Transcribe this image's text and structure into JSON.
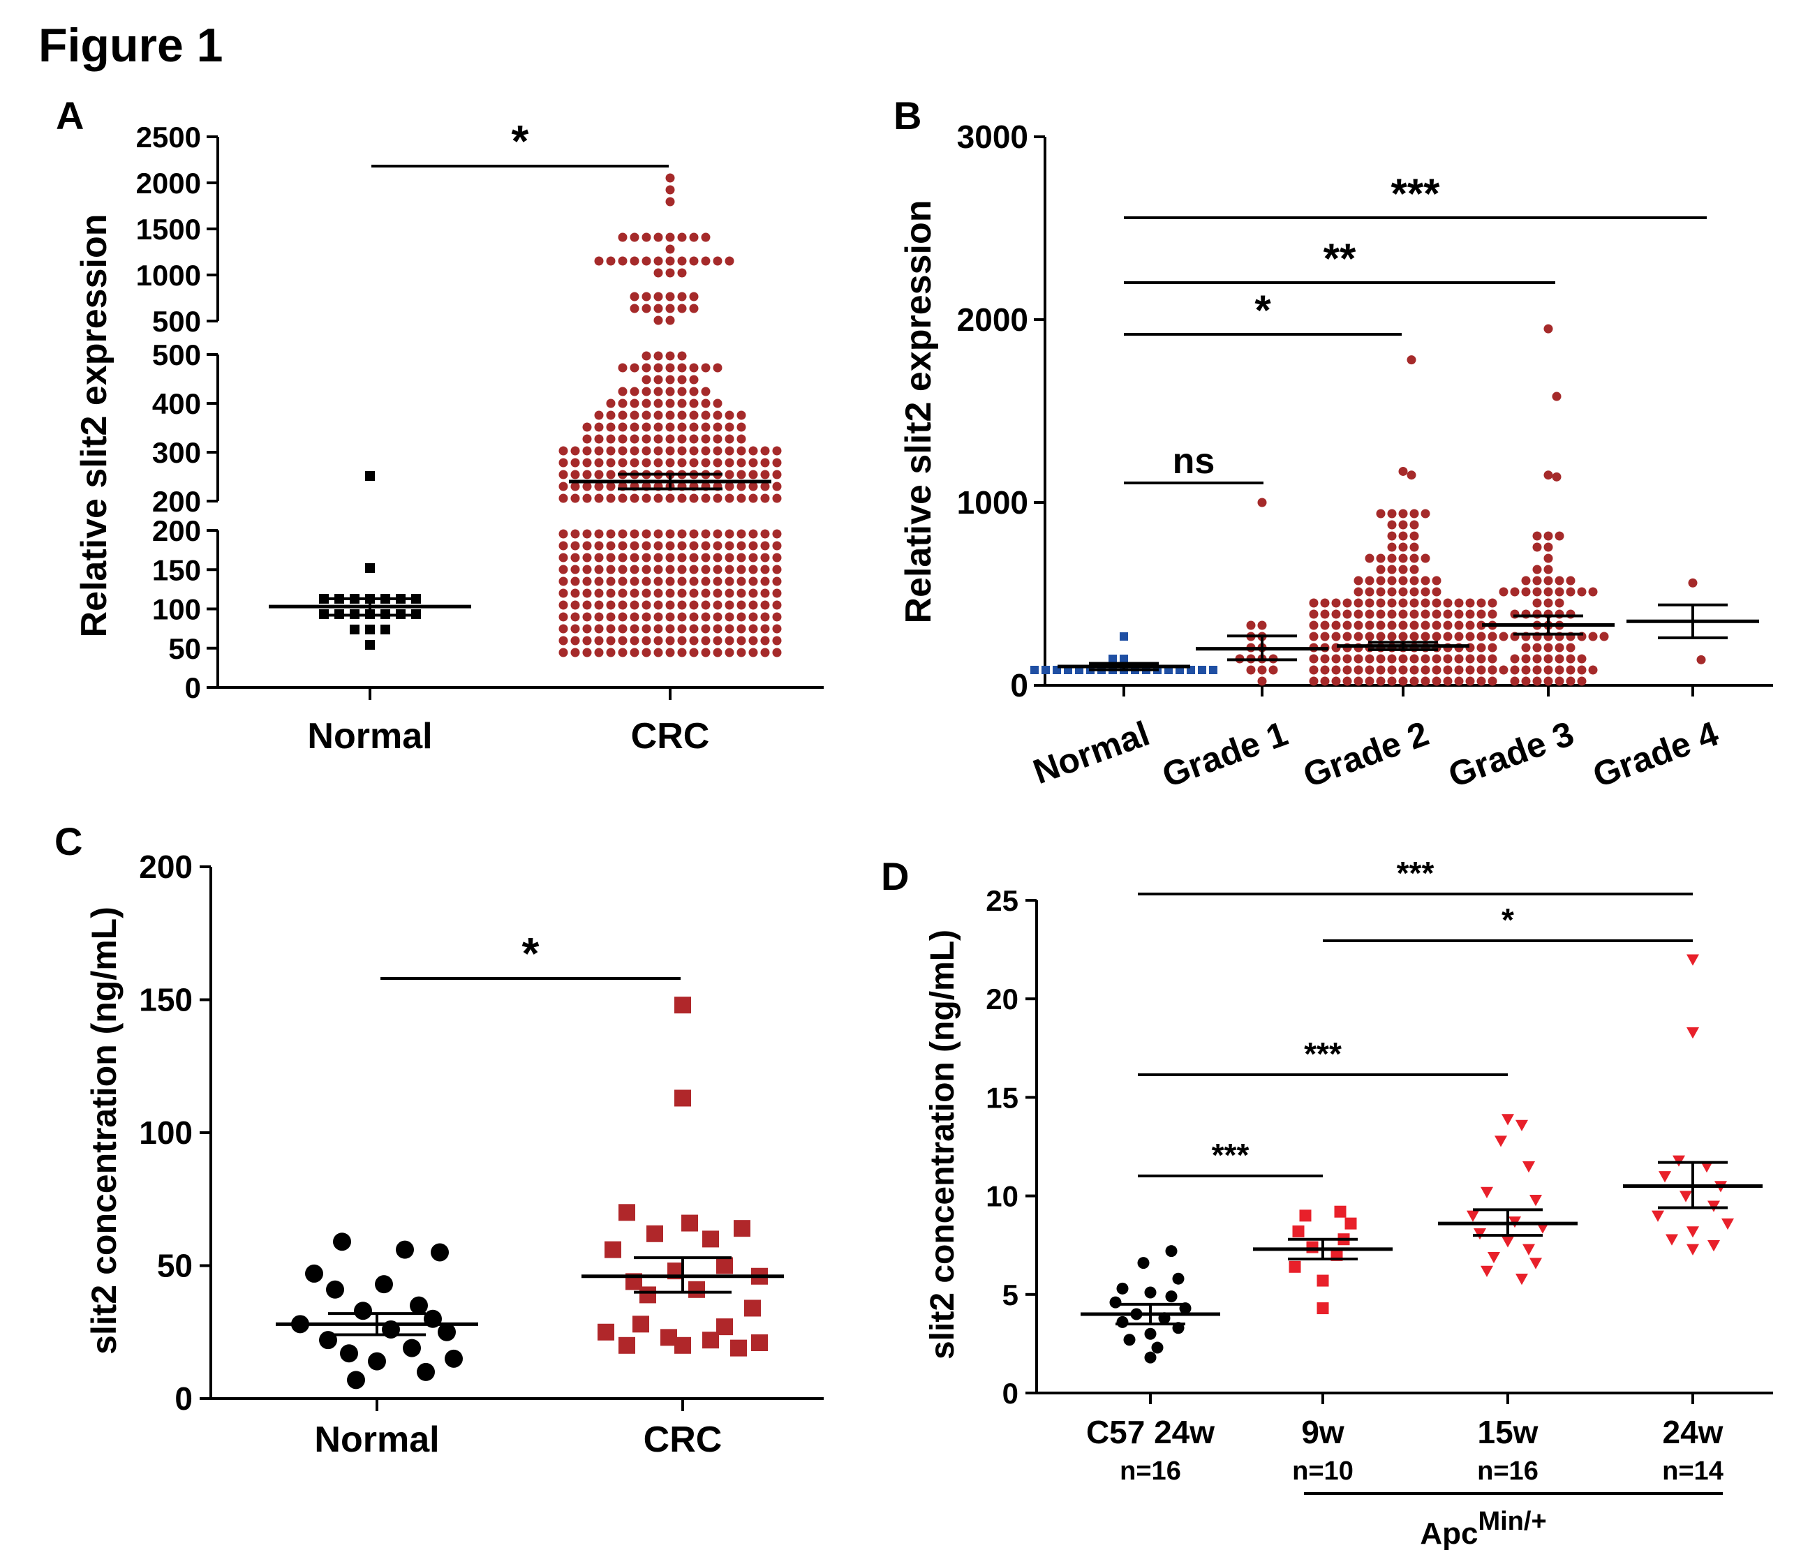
{
  "figure_title": "Figure 1",
  "colors": {
    "black": "#000000",
    "dark_red": "#a52a2a",
    "blue": "#1f4fa3",
    "red": "#e8202a",
    "crimson": "#b0272a"
  },
  "chart_data": [
    {
      "panel": "A",
      "type": "scatter",
      "ylabel": "Relative slit2 expression",
      "categories": [
        "Normal",
        "CRC"
      ],
      "y_broken_axis": {
        "segments": [
          {
            "range": [
              0,
              200
            ],
            "ticks": [
              "0",
              "50",
              "100",
              "150",
              "200"
            ]
          },
          {
            "range": [
              200,
              500
            ],
            "ticks": [
              "200",
              "300",
              "400",
              "500"
            ]
          },
          {
            "range": [
              500,
              2500
            ],
            "ticks": [
              "500",
              "1000",
              "1500",
              "2000",
              "2500"
            ]
          }
        ]
      },
      "summary": [
        {
          "category": "Normal",
          "mean": 103,
          "sem_low": 92,
          "sem_high": 113,
          "n_points": 20
        },
        {
          "category": "CRC",
          "mean": 240,
          "sem_low": 225,
          "sem_high": 255,
          "n_points": 600
        }
      ],
      "significance": [
        {
          "from": "Normal",
          "to": "CRC",
          "label": "*"
        }
      ]
    },
    {
      "panel": "B",
      "type": "scatter",
      "ylabel": "Relative slit2 expression",
      "categories": [
        "Normal",
        "Grade 1",
        "Grade 2",
        "Grade 3",
        "Grade 4"
      ],
      "ylim": [
        0,
        3000
      ],
      "yticks": [
        "0",
        "1000",
        "2000",
        "3000"
      ],
      "summary": [
        {
          "category": "Normal",
          "mean": 103,
          "sem_low": 85,
          "sem_high": 120
        },
        {
          "category": "Grade 1",
          "mean": 200,
          "sem_low": 140,
          "sem_high": 270
        },
        {
          "category": "Grade 2",
          "mean": 215,
          "sem_low": 195,
          "sem_high": 235
        },
        {
          "category": "Grade 3",
          "mean": 330,
          "sem_low": 280,
          "sem_high": 380
        },
        {
          "category": "Grade 4",
          "mean": 350,
          "sem_low": 260,
          "sem_high": 440
        }
      ],
      "outliers": [
        {
          "category": "Grade 1",
          "value": 1000
        },
        {
          "category": "Grade 2",
          "value": 1780
        },
        {
          "category": "Grade 2",
          "value": 1170
        },
        {
          "category": "Grade 2",
          "value": 1150
        },
        {
          "category": "Grade 3",
          "value": 1950
        },
        {
          "category": "Grade 3",
          "value": 1580
        },
        {
          "category": "Grade 3",
          "value": 1150
        },
        {
          "category": "Grade 3",
          "value": 1140
        },
        {
          "category": "Grade 4",
          "value": 560
        },
        {
          "category": "Grade 4",
          "value": 140
        }
      ],
      "significance": [
        {
          "from": "Normal",
          "to": "Grade 1",
          "label": "ns"
        },
        {
          "from": "Normal",
          "to": "Grade 2",
          "label": "*"
        },
        {
          "from": "Normal",
          "to": "Grade 3",
          "label": "**"
        },
        {
          "from": "Normal",
          "to": "Grade 4",
          "label": "***"
        }
      ]
    },
    {
      "panel": "C",
      "type": "scatter",
      "ylabel": "slit2 concentration (ng/mL)",
      "categories": [
        "Normal",
        "CRC"
      ],
      "ylim": [
        0,
        200
      ],
      "yticks": [
        "0",
        "50",
        "100",
        "150",
        "200"
      ],
      "series": [
        {
          "name": "Normal",
          "values": [
            59,
            56,
            55,
            47,
            43,
            41,
            35,
            33,
            30,
            28,
            26,
            25,
            22,
            19,
            17,
            15,
            14,
            10,
            7
          ]
        },
        {
          "name": "CRC",
          "values": [
            148,
            113,
            70,
            66,
            64,
            62,
            60,
            56,
            50,
            48,
            46,
            44,
            41,
            39,
            34,
            28,
            27,
            25,
            23,
            22,
            21,
            20,
            20,
            19
          ]
        }
      ],
      "summary": [
        {
          "category": "Normal",
          "mean": 28,
          "sem_low": 24,
          "sem_high": 32
        },
        {
          "category": "CRC",
          "mean": 46,
          "sem_low": 40,
          "sem_high": 53
        }
      ],
      "significance": [
        {
          "from": "Normal",
          "to": "CRC",
          "label": "*"
        }
      ]
    },
    {
      "panel": "D",
      "type": "scatter",
      "ylabel": "slit2 concentration (ng/mL)",
      "categories": [
        "C57 24w",
        "9w",
        "15w",
        "24w"
      ],
      "n_labels": [
        "n=16",
        "n=10",
        "n=16",
        "n=14"
      ],
      "group_label": {
        "base": "Apc",
        "superscript": "Min/+"
      },
      "ylim": [
        0,
        25
      ],
      "yticks": [
        "0",
        "5",
        "10",
        "15",
        "20",
        "25"
      ],
      "series": [
        {
          "name": "C57 24w",
          "values": [
            7.2,
            6.6,
            5.8,
            5.3,
            5.1,
            4.9,
            4.6,
            4.3,
            4.0,
            3.8,
            3.6,
            3.3,
            3.0,
            2.7,
            2.3,
            1.8
          ]
        },
        {
          "name": "9w",
          "values": [
            9.2,
            9.0,
            8.6,
            8.2,
            7.8,
            7.4,
            7.0,
            6.4,
            5.7,
            4.3
          ]
        },
        {
          "name": "15w",
          "values": [
            13.9,
            13.6,
            12.8,
            11.5,
            10.2,
            9.8,
            9.0,
            8.7,
            8.4,
            8.1,
            7.7,
            7.3,
            6.9,
            6.6,
            6.2,
            5.8
          ]
        },
        {
          "name": "24w",
          "values": [
            22.0,
            18.3,
            11.8,
            11.5,
            11.0,
            10.5,
            10.0,
            9.5,
            9.0,
            8.6,
            8.2,
            7.8,
            7.5,
            7.3
          ]
        }
      ],
      "summary": [
        {
          "category": "C57 24w",
          "mean": 4.0,
          "sem_low": 3.5,
          "sem_high": 4.5
        },
        {
          "category": "9w",
          "mean": 7.3,
          "sem_low": 6.8,
          "sem_high": 7.8
        },
        {
          "category": "15w",
          "mean": 8.6,
          "sem_low": 8.0,
          "sem_high": 9.3
        },
        {
          "category": "24w",
          "mean": 10.5,
          "sem_low": 9.4,
          "sem_high": 11.7
        }
      ],
      "significance": [
        {
          "from": "C57 24w",
          "to": "24w",
          "label": "***"
        },
        {
          "from": "9w",
          "to": "24w",
          "label": "*"
        },
        {
          "from": "C57 24w",
          "to": "15w",
          "label": "***"
        },
        {
          "from": "C57 24w",
          "to": "9w",
          "label": "***"
        }
      ]
    }
  ]
}
